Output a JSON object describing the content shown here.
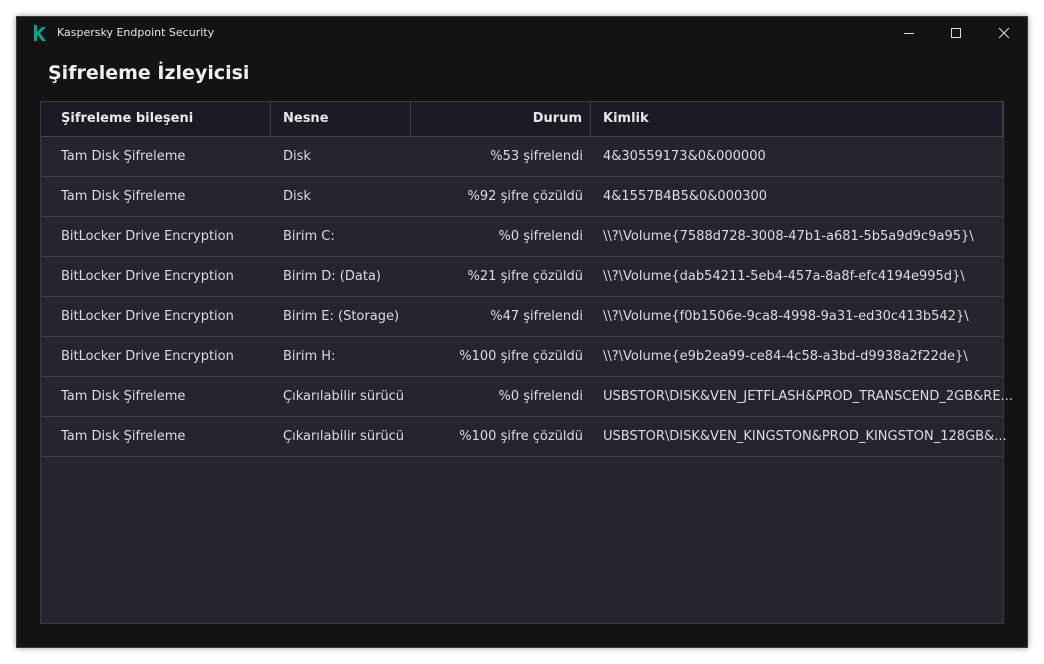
{
  "window": {
    "app_title": "Kaspersky Endpoint Security",
    "brand_color": "#00a88e",
    "controls": [
      "minimize-icon",
      "maximize-icon",
      "close-icon"
    ]
  },
  "page": {
    "title": "Şifreleme İzleyicisi"
  },
  "table": {
    "columns": [
      "Şifreleme bileşeni",
      "Nesne",
      "Durum",
      "Kimlik"
    ],
    "rows": [
      [
        "Tam Disk Şifreleme",
        "Disk",
        "%53 şifrelendi",
        "4&30559173&0&000000"
      ],
      [
        "Tam Disk Şifreleme",
        "Disk",
        "%92 şifre çözüldü",
        "4&1557B4B5&0&000300"
      ],
      [
        "BitLocker Drive Encryption",
        "Birim C:",
        "%0 şifrelendi",
        "\\\\?\\Volume{7588d728-3008-47b1-a681-5b5a9d9c9a95}\\"
      ],
      [
        "BitLocker Drive Encryption",
        "Birim D: (Data)",
        "%21 şifre çözüldü",
        "\\\\?\\Volume{dab54211-5eb4-457a-8a8f-efc4194e995d}\\"
      ],
      [
        "BitLocker Drive Encryption",
        "Birim E: (Storage)",
        "%47 şifrelendi",
        "\\\\?\\Volume{f0b1506e-9ca8-4998-9a31-ed30c413b542}\\"
      ],
      [
        "BitLocker Drive Encryption",
        "Birim H:",
        "%100 şifre çözüldü",
        "\\\\?\\Volume{e9b2ea99-ce84-4c58-a3bd-d9938a2f22de}\\"
      ],
      [
        "Tam Disk Şifreleme",
        "Çıkarılabilir sürücü",
        "%0 şifrelendi",
        "USBSTOR\\DISK&VEN_JETFLASH&PROD_TRANSCEND_2GB&RE..."
      ],
      [
        "Tam Disk Şifreleme",
        "Çıkarılabilir sürücü",
        "%100 şifre çözüldü",
        "USBSTOR\\DISK&VEN_KINGSTON&PROD_KINGSTON_128GB&..."
      ]
    ]
  }
}
